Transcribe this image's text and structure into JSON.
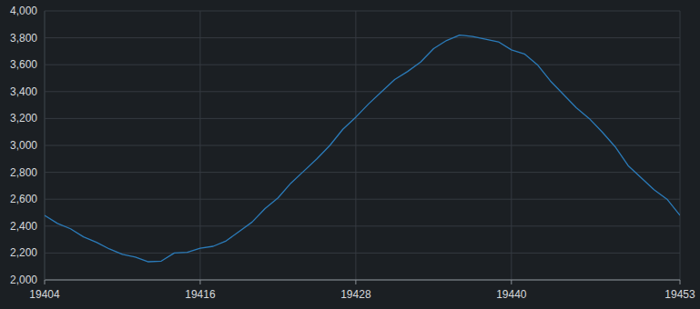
{
  "chart_data": {
    "type": "line",
    "x": [
      19404,
      19405,
      19406,
      19407,
      19408,
      19409,
      19410,
      19411,
      19412,
      19413,
      19414,
      19415,
      19416,
      19417,
      19418,
      19419,
      19420,
      19421,
      19422,
      19423,
      19424,
      19425,
      19426,
      19427,
      19428,
      19429,
      19430,
      19431,
      19432,
      19433,
      19434,
      19435,
      19436,
      19437,
      19438,
      19439,
      19440,
      19441,
      19442,
      19443,
      19444,
      19445,
      19446,
      19447,
      19448,
      19449,
      19450,
      19451,
      19452,
      19453
    ],
    "values": [
      2480,
      2420,
      2380,
      2320,
      2280,
      2230,
      2190,
      2170,
      2135,
      2140,
      2200,
      2205,
      2235,
      2250,
      2290,
      2360,
      2430,
      2530,
      2610,
      2720,
      2810,
      2900,
      3000,
      3120,
      3210,
      3310,
      3400,
      3490,
      3550,
      3620,
      3720,
      3780,
      3820,
      3810,
      3790,
      3770,
      3710,
      3680,
      3600,
      3480,
      3380,
      3280,
      3200,
      3100,
      2990,
      2850,
      2760,
      2670,
      2600,
      2480
    ],
    "color": "#2b7bb9",
    "xlim": [
      19404,
      19453
    ],
    "xticks": [
      19404,
      19416,
      19428,
      19440,
      19453
    ],
    "ylim": [
      2000,
      4000
    ],
    "yticks": [
      {
        "value": 2000,
        "label": "2,000"
      },
      {
        "value": 2200,
        "label": "2,200"
      },
      {
        "value": 2400,
        "label": "2,400"
      },
      {
        "value": 2600,
        "label": "2,600"
      },
      {
        "value": 2800,
        "label": "2,800"
      },
      {
        "value": 3000,
        "label": "3,000"
      },
      {
        "value": 3200,
        "label": "3,200"
      },
      {
        "value": 3400,
        "label": "3,400"
      },
      {
        "value": 3600,
        "label": "3,600"
      },
      {
        "value": 3800,
        "label": "3,800"
      },
      {
        "value": 4000,
        "label": "4,000"
      }
    ],
    "grid": true
  }
}
